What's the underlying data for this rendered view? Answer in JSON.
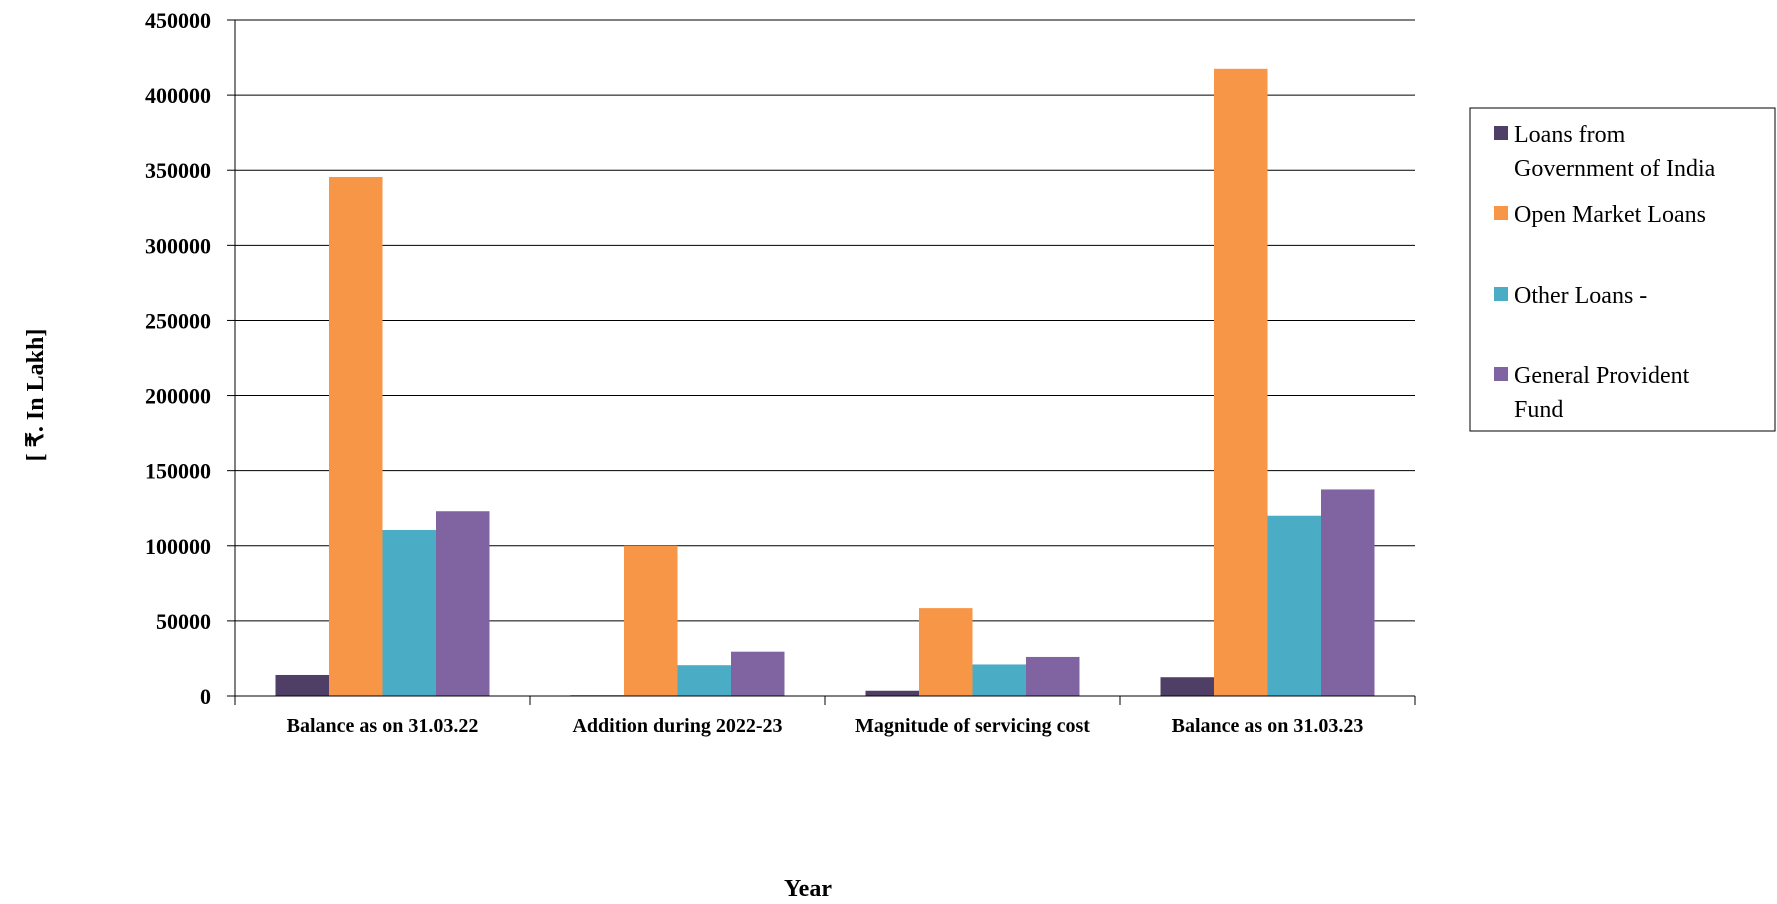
{
  "chart_data": {
    "type": "bar",
    "xlabel": "Year",
    "ylabel": "[ ₹. In Lakh]",
    "ylim": [
      0,
      450000
    ],
    "yticks": [
      0,
      50000,
      100000,
      150000,
      200000,
      250000,
      300000,
      350000,
      400000,
      450000
    ],
    "grid": true,
    "legend_position": "right",
    "categories": [
      "Balance as on 31.03.22",
      "Addition during 2022-23",
      "Magnitude of servicing cost",
      "Balance as on 31.03.23"
    ],
    "series": [
      {
        "name": "Loans from Government of India",
        "legend_lines": [
          "Loans from",
          "Government of India"
        ],
        "color": "#4f3f66",
        "values": [
          14000,
          500,
          3500,
          12500
        ]
      },
      {
        "name": "Open Market Loans",
        "legend_lines": [
          "Open Market Loans"
        ],
        "color": "#f79646",
        "values": [
          345500,
          100000,
          58500,
          417500
        ]
      },
      {
        "name": "Other Loans -",
        "legend_lines": [
          "Other Loans -"
        ],
        "color": "#4bacc6",
        "values": [
          110500,
          20500,
          21000,
          120000
        ]
      },
      {
        "name": "General Provident Fund",
        "legend_lines": [
          "General Provident",
          "Fund"
        ],
        "color": "#8064a2",
        "values": [
          123000,
          29500,
          26000,
          137500
        ]
      }
    ]
  }
}
